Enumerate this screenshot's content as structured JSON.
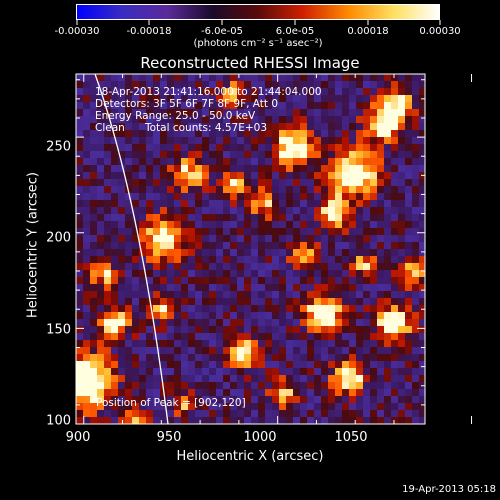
{
  "colorbar": {
    "labels": [
      "-0.00030",
      "-0.00018",
      "-6.0e-05",
      "6.0e-05",
      "0.00018",
      "0.00030"
    ],
    "units": "(photons cm⁻² s⁻¹ asec⁻²)",
    "colormap": [
      "#0000ff",
      "#3a2cc0",
      "#5a2a9a",
      "#1a0a2a",
      "#5a0a0a",
      "#d02000",
      "#ff8a00",
      "#ffe060",
      "#ffffff"
    ]
  },
  "chart_data": {
    "type": "heatmap",
    "title": "Reconstructed RHESSI Image",
    "xlabel": "Heliocentric X (arcsec)",
    "ylabel": "Heliocentric Y (arcsec)",
    "xlim": [
      898,
      988
    ],
    "ylim": [
      100,
      283
    ],
    "xticks": [
      "900",
      "950",
      "1000",
      "1050"
    ],
    "yticks": [
      "100",
      "150",
      "200",
      "250"
    ],
    "annotations": [
      "18-Apr-2013 21:41:16.000 to 21:44:04.000",
      "Detectors: 3F 5F 6F 7F 8F 9F, Att 0",
      "Energy Range: 25.0 - 50.0 keV",
      "Clean",
      "Total counts: 4.57E+03"
    ],
    "peak_label": "Position of Peak = [902,120]",
    "peak": [
      902,
      120
    ],
    "value_range": [
      -0.0003,
      0.0003
    ]
  },
  "timestamp": "19-Apr-2013 05:18"
}
